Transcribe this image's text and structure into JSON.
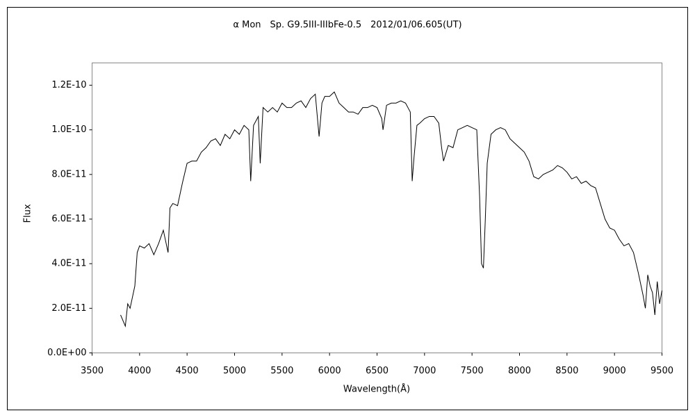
{
  "chart_data": {
    "type": "line",
    "title": "α Mon　Sp. G9.5III-IIIbFe-0.5　2012/01/06.605(UT)",
    "x_label": "Wavelength(Å)",
    "y_label": "Flux",
    "color": "#000000",
    "xlim": [
      3500,
      9500
    ],
    "xticks": [
      3500,
      4000,
      4500,
      5000,
      5500,
      6000,
      6500,
      7000,
      7500,
      8000,
      8500,
      9000,
      9500
    ],
    "ylim": [
      0,
      1.3e-10
    ],
    "yticks": [
      {
        "value": 0,
        "label": "0.0E+00"
      },
      {
        "value": 2e-11,
        "label": "2.0E-11"
      },
      {
        "value": 4e-11,
        "label": "4.0E-11"
      },
      {
        "value": 6e-11,
        "label": "6.0E-11"
      },
      {
        "value": 8e-11,
        "label": "8.0E-11"
      },
      {
        "value": 1e-10,
        "label": "1.0E-10"
      },
      {
        "value": 1.2e-10,
        "label": "1.2E-10"
      }
    ],
    "x": [
      3800,
      3850,
      3875,
      3900,
      3950,
      3975,
      4000,
      4050,
      4100,
      4150,
      4200,
      4250,
      4300,
      4320,
      4350,
      4400,
      4450,
      4500,
      4550,
      4600,
      4650,
      4700,
      4750,
      4800,
      4850,
      4900,
      4950,
      5000,
      5050,
      5100,
      5150,
      5170,
      5200,
      5250,
      5270,
      5300,
      5350,
      5400,
      5450,
      5500,
      5550,
      5600,
      5650,
      5700,
      5750,
      5800,
      5850,
      5890,
      5920,
      5950,
      6000,
      6050,
      6100,
      6150,
      6200,
      6250,
      6300,
      6350,
      6400,
      6450,
      6500,
      6550,
      6563,
      6600,
      6650,
      6700,
      6750,
      6800,
      6850,
      6870,
      6890,
      6920,
      6950,
      7000,
      7050,
      7100,
      7150,
      7180,
      7200,
      7250,
      7300,
      7350,
      7400,
      7450,
      7500,
      7550,
      7580,
      7600,
      7620,
      7640,
      7660,
      7700,
      7750,
      7800,
      7850,
      7900,
      7950,
      8000,
      8050,
      8100,
      8150,
      8200,
      8250,
      8300,
      8350,
      8400,
      8450,
      8500,
      8550,
      8600,
      8650,
      8700,
      8750,
      8800,
      8850,
      8900,
      8950,
      9000,
      9050,
      9100,
      9150,
      9200,
      9250,
      9300,
      9325,
      9350,
      9375,
      9400,
      9425,
      9450,
      9475,
      9500
    ],
    "values": [
      1.7e-11,
      1.2e-11,
      2.2e-11,
      2e-11,
      3e-11,
      4.5e-11,
      4.8e-11,
      4.7e-11,
      4.9e-11,
      4.4e-11,
      4.9e-11,
      5.5e-11,
      4.5e-11,
      6.5e-11,
      6.7e-11,
      6.6e-11,
      7.6e-11,
      8.5e-11,
      8.6e-11,
      8.6e-11,
      9e-11,
      9.2e-11,
      9.5e-11,
      9.6e-11,
      9.3e-11,
      9.8e-11,
      9.6e-11,
      1e-10,
      9.8e-11,
      1.02e-10,
      1e-10,
      7.7e-11,
      1.02e-10,
      1.06e-10,
      8.5e-11,
      1.1e-10,
      1.08e-10,
      1.1e-10,
      1.08e-10,
      1.12e-10,
      1.1e-10,
      1.1e-10,
      1.12e-10,
      1.13e-10,
      1.1e-10,
      1.14e-10,
      1.16e-10,
      9.7e-11,
      1.12e-10,
      1.15e-10,
      1.15e-10,
      1.17e-10,
      1.12e-10,
      1.1e-10,
      1.08e-10,
      1.08e-10,
      1.07e-10,
      1.1e-10,
      1.1e-10,
      1.11e-10,
      1.1e-10,
      1.05e-10,
      1e-10,
      1.11e-10,
      1.12e-10,
      1.12e-10,
      1.13e-10,
      1.12e-10,
      1.08e-10,
      7.7e-11,
      8.8e-11,
      1.02e-10,
      1.03e-10,
      1.05e-10,
      1.06e-10,
      1.06e-10,
      1.03e-10,
      9.2e-11,
      8.6e-11,
      9.3e-11,
      9.2e-11,
      1e-10,
      1.01e-10,
      1.02e-10,
      1.01e-10,
      1e-10,
      7e-11,
      4e-11,
      3.8e-11,
      6e-11,
      8.5e-11,
      9.8e-11,
      1e-10,
      1.01e-10,
      1e-10,
      9.6e-11,
      9.4e-11,
      9.2e-11,
      9e-11,
      8.6e-11,
      7.9e-11,
      7.8e-11,
      8e-11,
      8.1e-11,
      8.2e-11,
      8.4e-11,
      8.3e-11,
      8.1e-11,
      7.8e-11,
      7.9e-11,
      7.6e-11,
      7.7e-11,
      7.5e-11,
      7.4e-11,
      6.7e-11,
      6e-11,
      5.6e-11,
      5.5e-11,
      5.1e-11,
      4.8e-11,
      4.9e-11,
      4.5e-11,
      3.6e-11,
      2.6e-11,
      2e-11,
      3.5e-11,
      3e-11,
      2.7e-11,
      1.7e-11,
      3.2e-11,
      2.2e-11,
      2.8e-11
    ]
  }
}
